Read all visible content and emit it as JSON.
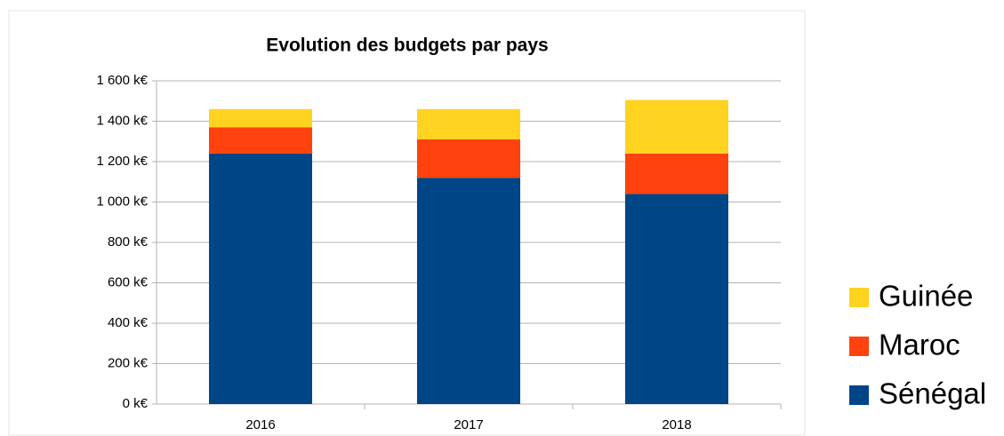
{
  "chart_data": {
    "type": "stacked_bar",
    "title": "Evolution des budgets par pays",
    "categories": [
      "2016",
      "2017",
      "2018"
    ],
    "series": [
      {
        "name": "Sénégal",
        "color": "#004586",
        "values": [
          1240,
          1120,
          1040
        ]
      },
      {
        "name": "Maroc",
        "color": "#ff420e",
        "values": [
          130,
          190,
          200
        ]
      },
      {
        "name": "Guinée",
        "color": "#ffd320",
        "values": [
          90,
          150,
          265
        ]
      }
    ],
    "ylim": [
      0,
      1600
    ],
    "yticks": [
      {
        "value": 0,
        "label": "0 k€"
      },
      {
        "value": 200,
        "label": "200 k€"
      },
      {
        "value": 400,
        "label": "400 k€"
      },
      {
        "value": 600,
        "label": "600 k€"
      },
      {
        "value": 800,
        "label": "800 k€"
      },
      {
        "value": 1000,
        "label": "1 000 k€"
      },
      {
        "value": 1200,
        "label": "1 200 k€"
      },
      {
        "value": 1400,
        "label": "1 400 k€"
      },
      {
        "value": 1600,
        "label": "1 600 k€"
      }
    ],
    "grid": true,
    "legend": "right"
  }
}
